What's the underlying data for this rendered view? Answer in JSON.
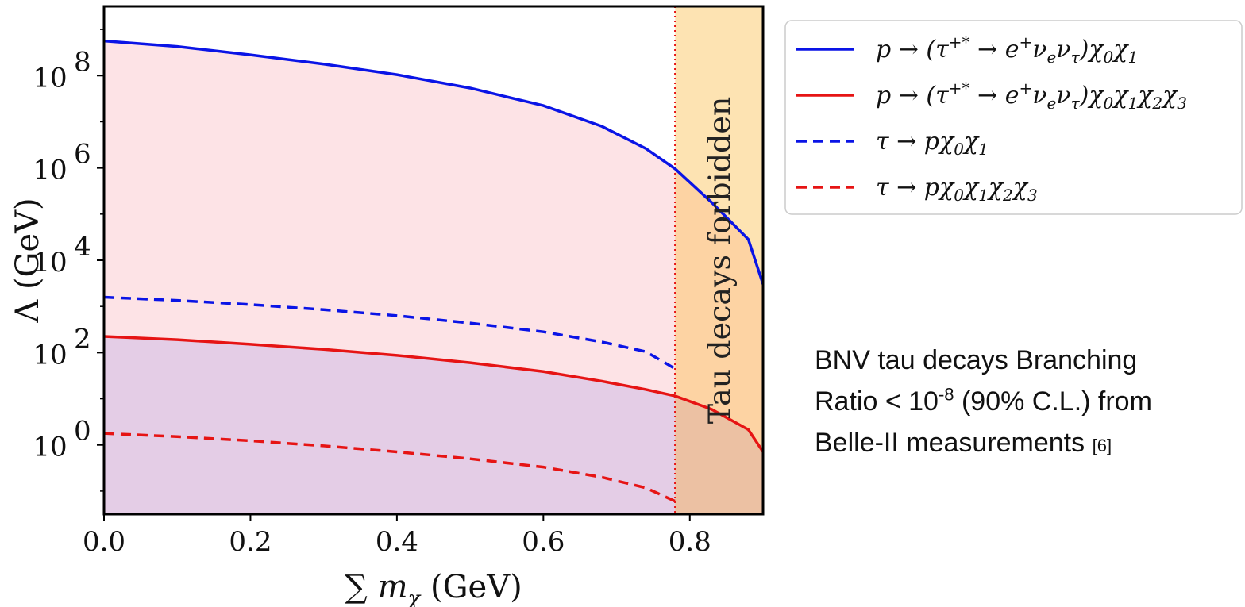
{
  "chart_data": {
    "type": "line",
    "xlabel": "∑ m",
    "xlabel_sub": "χ",
    "xlabel_unit": " (GeV)",
    "ylabel": "Λ (GeV)",
    "yscale": "log",
    "xlim": [
      0.0,
      0.9
    ],
    "ylim_log10": [
      -1.5,
      9.5
    ],
    "x_ticks": [
      "0.0",
      "0.2",
      "0.4",
      "0.6",
      "0.8"
    ],
    "y_ticks": [
      {
        "base": "10",
        "exp": "8",
        "log": 8
      },
      {
        "base": "10",
        "exp": "6",
        "log": 6
      },
      {
        "base": "10",
        "exp": "4",
        "log": 4
      },
      {
        "base": "10",
        "exp": "2",
        "log": 2
      },
      {
        "base": "10",
        "exp": "0",
        "log": 0
      }
    ],
    "forbidden_threshold_x": 0.78,
    "forbidden_region_label": "Tau decays forbidden",
    "grid": false,
    "legend_position": "outside-upper-right",
    "series": [
      {
        "name": "p → (τ+* → e+ νe ντ) χ0 χ1",
        "color": "#0a14e6",
        "style": "solid",
        "x": [
          0.0,
          0.1,
          0.2,
          0.3,
          0.4,
          0.5,
          0.6,
          0.68,
          0.74,
          0.78,
          0.83,
          0.88,
          0.9
        ],
        "log10_y": [
          8.75,
          8.63,
          8.45,
          8.25,
          8.02,
          7.73,
          7.35,
          6.9,
          6.42,
          5.98,
          5.25,
          4.45,
          3.48
        ]
      },
      {
        "name": "p → (τ+* → e+ νe ντ) χ0 χ1 χ2 χ3",
        "color": "#e61414",
        "style": "solid",
        "x": [
          0.0,
          0.1,
          0.2,
          0.3,
          0.4,
          0.5,
          0.6,
          0.68,
          0.74,
          0.78,
          0.83,
          0.88,
          0.9
        ],
        "log10_y": [
          2.35,
          2.28,
          2.18,
          2.07,
          1.94,
          1.78,
          1.59,
          1.38,
          1.2,
          1.06,
          0.77,
          0.33,
          -0.15
        ]
      },
      {
        "name": "τ → p χ0 χ1",
        "color": "#0a14e6",
        "style": "dashed",
        "x": [
          0.0,
          0.1,
          0.2,
          0.3,
          0.4,
          0.5,
          0.6,
          0.68,
          0.74,
          0.78
        ],
        "log10_y": [
          3.2,
          3.13,
          3.04,
          2.93,
          2.8,
          2.64,
          2.45,
          2.23,
          2.02,
          1.65
        ]
      },
      {
        "name": "τ → p χ0 χ1 χ2 χ3",
        "color": "#e61414",
        "style": "dashed",
        "x": [
          0.0,
          0.1,
          0.2,
          0.3,
          0.4,
          0.5,
          0.6,
          0.68,
          0.74,
          0.78
        ],
        "log10_y": [
          0.25,
          0.18,
          0.09,
          -0.02,
          -0.15,
          -0.3,
          -0.48,
          -0.7,
          -0.93,
          -1.22
        ]
      }
    ],
    "legend_entries": [
      {
        "main": "p → (τ",
        "sup": "+*",
        "rest": " → e",
        "sup2": "+",
        "tail": "ν",
        "subs": [
          [
            "e"
          ],
          [
            "τ"
          ]
        ],
        "after": ")χ",
        "chi": [
          "0",
          "1"
        ]
      },
      {
        "main": "p → (τ",
        "sup": "+*",
        "rest": " → e",
        "sup2": "+",
        "tail": "ν",
        "subs": [
          [
            "e"
          ],
          [
            "τ"
          ]
        ],
        "after": ")χ",
        "chi": [
          "0",
          "1",
          "2",
          "3"
        ]
      },
      {
        "main": "τ → pχ",
        "chi": [
          "0",
          "1"
        ]
      },
      {
        "main": "τ → pχ",
        "chi": [
          "0",
          "1",
          "2",
          "3"
        ]
      }
    ],
    "fill_colors": {
      "pink": "#fde3e6",
      "purple": "#e4cde6",
      "forbidden": "#fde3b2",
      "forbidden_overlap_pink": "#fdd3a3",
      "forbidden_overlap_purple": "#ecc1a3",
      "threshold_line": "#e61414"
    }
  },
  "note": {
    "line1": "BNV tau decays Branching",
    "line2_a": "Ratio < 10",
    "line2_sup": "-8",
    "line2_b": " (90% C.L.) from",
    "line3_a": "Belle-II measurements ",
    "line3_ref": "[6]"
  }
}
